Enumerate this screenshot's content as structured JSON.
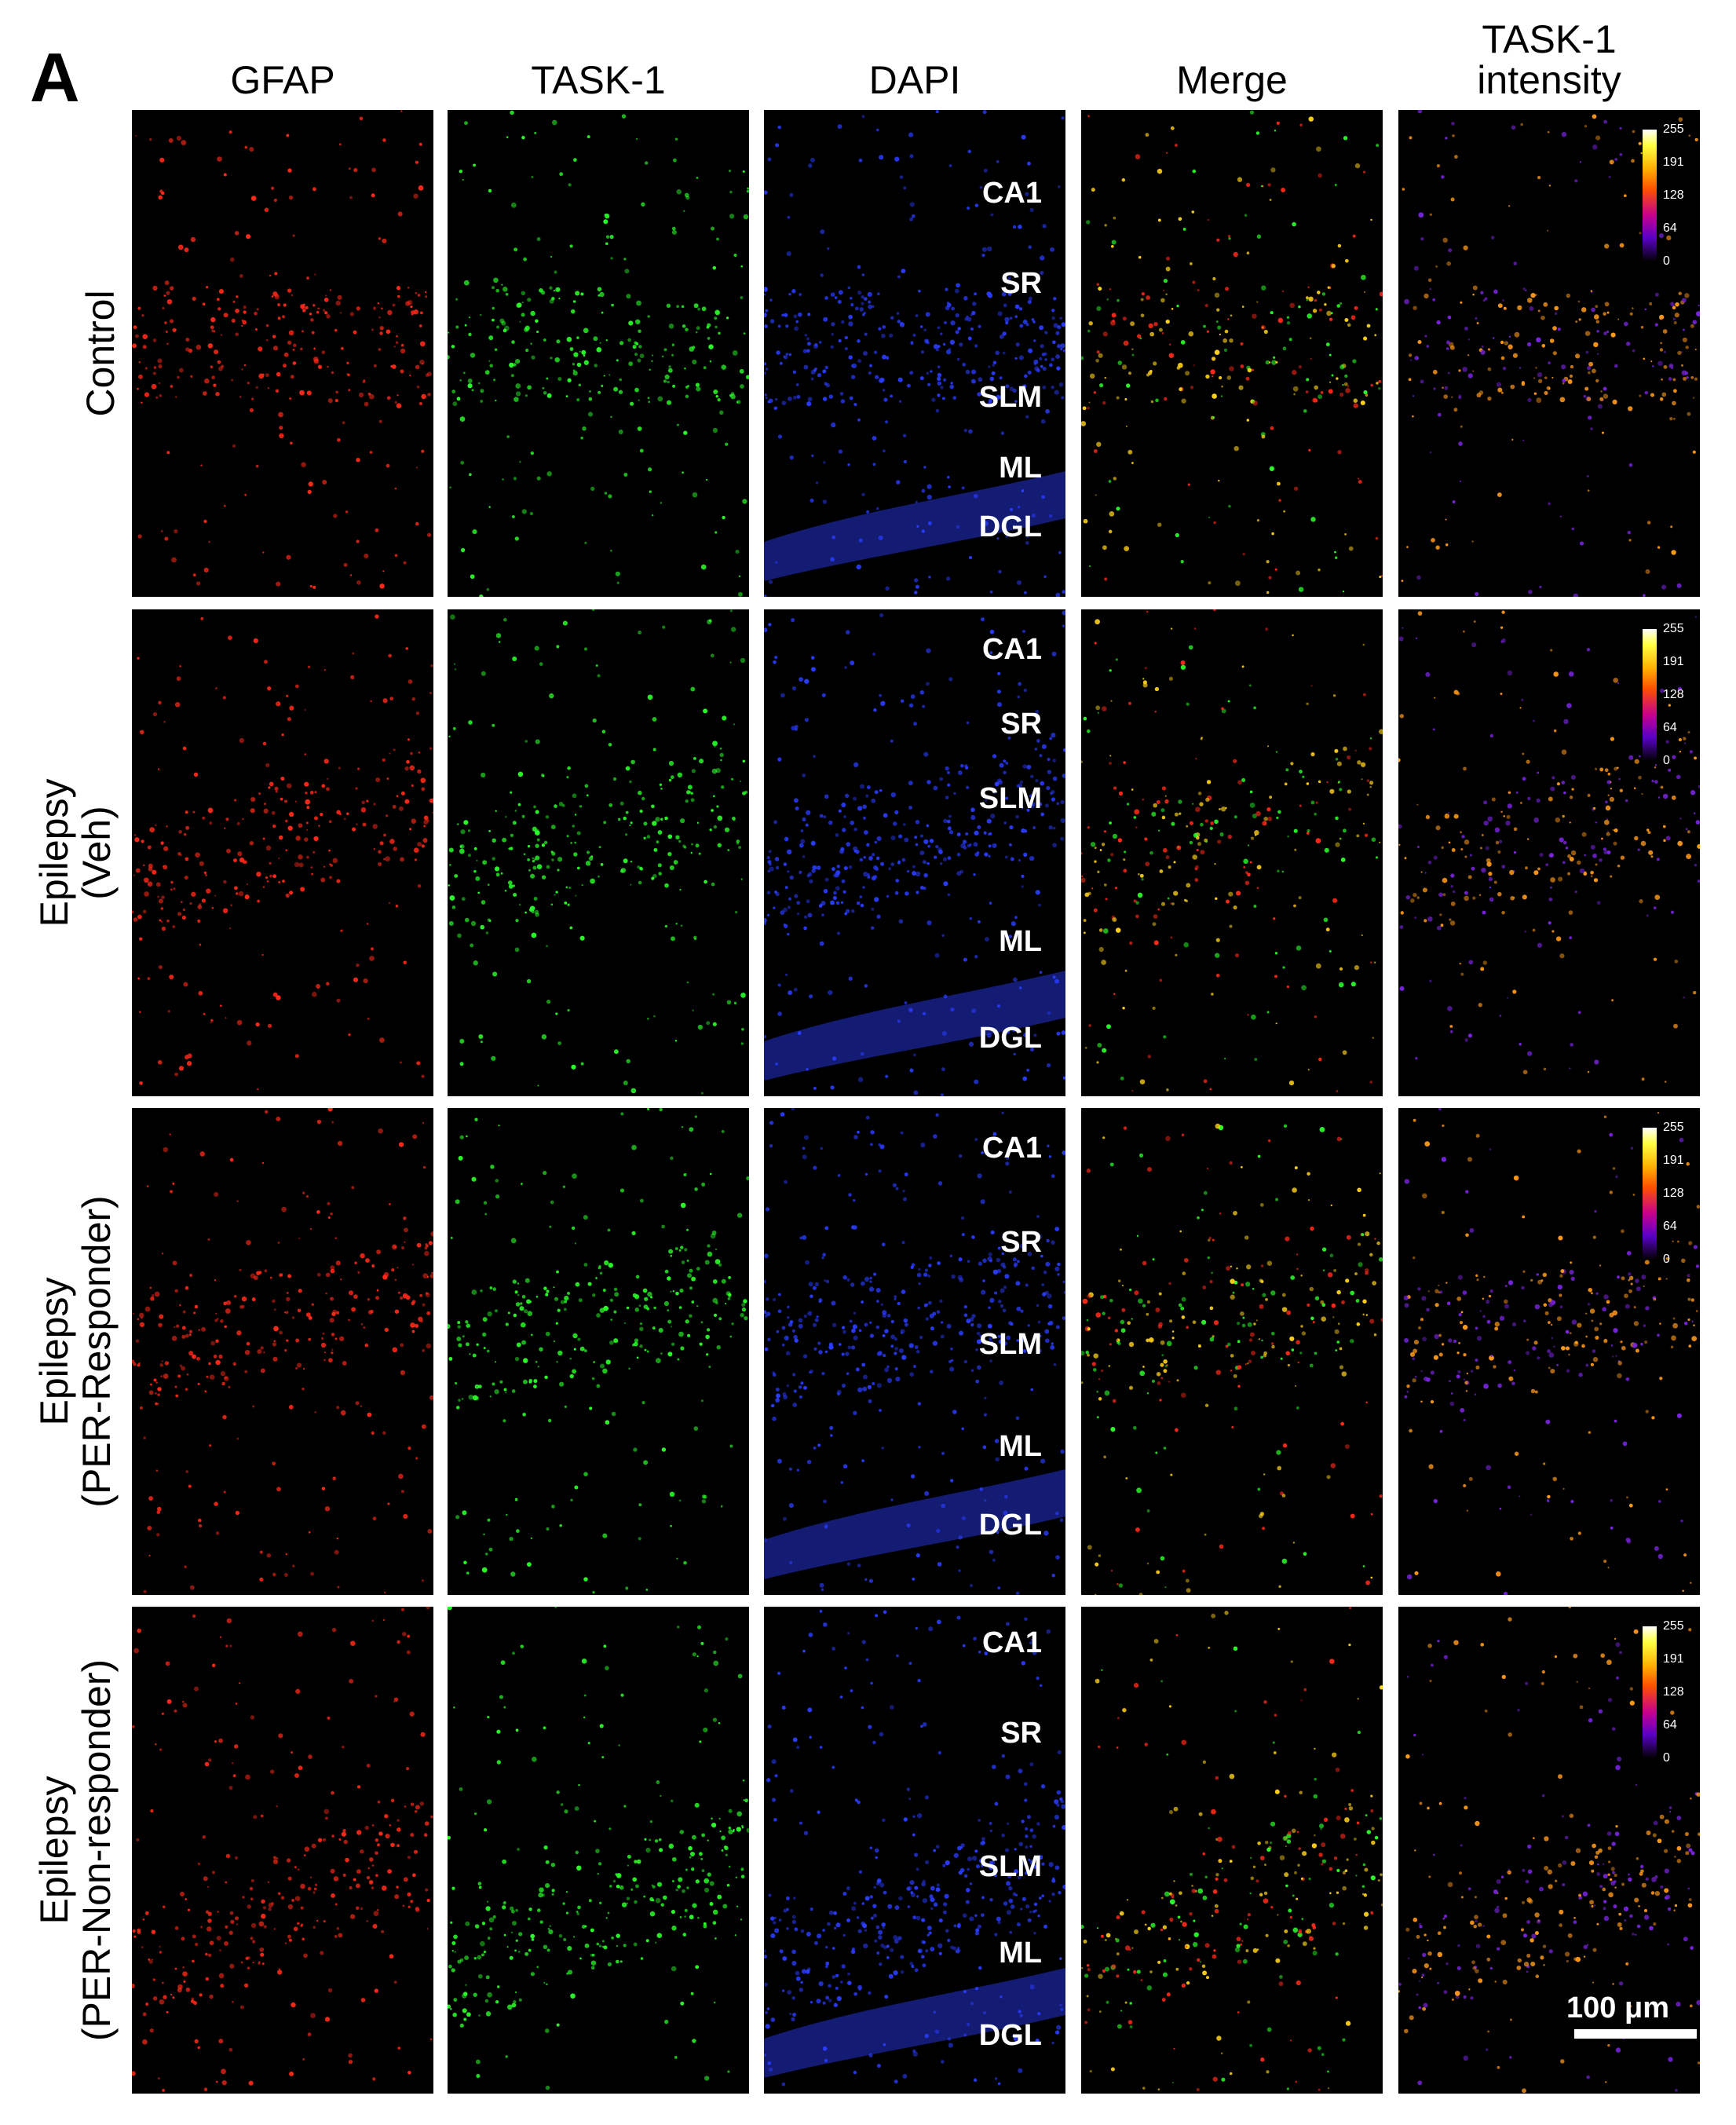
{
  "figure": {
    "panel_letter": "A",
    "columns": [
      "GFAP",
      "TASK-1",
      "DAPI",
      "Merge",
      "TASK-1\nintensity"
    ],
    "rows": [
      "Control",
      "Epilepsy\n(Veh)",
      "Epilepsy\n(PER-Responder)",
      "Epilepsy\n(PER-Non-responder)"
    ],
    "regions": [
      "CA1",
      "SR",
      "SLM",
      "ML",
      "DGL"
    ],
    "colorbar_ticks": [
      "255",
      "191",
      "128",
      "64",
      "0"
    ],
    "scale_bar_label": "100 μm",
    "channel_colors": {
      "GFAP": "#ff2a1a",
      "TASK-1": "#2aff2a",
      "DAPI": "#2a3cff",
      "Merge": "#ffd21a",
      "Intensity": "#ff9a1a",
      "Intensity_low": "#7a24e0"
    }
  }
}
